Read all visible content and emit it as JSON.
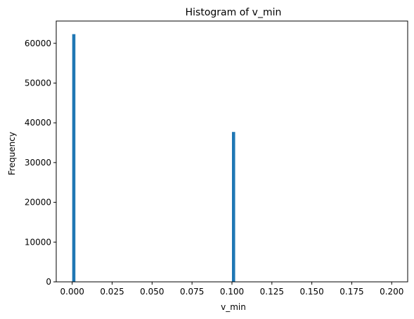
{
  "chart_data": {
    "type": "bar",
    "title": "Histogram of v_min",
    "xlabel": "v_min",
    "ylabel": "Frequency",
    "xlim": [
      -0.01,
      0.21
    ],
    "ylim": [
      0,
      65600
    ],
    "grid": false,
    "bin_width": 0.002,
    "x_ticks": [
      0.0,
      0.025,
      0.05,
      0.075,
      0.1,
      0.125,
      0.15,
      0.175,
      0.2
    ],
    "x_tick_labels": [
      "0.000",
      "0.025",
      "0.050",
      "0.075",
      "0.100",
      "0.125",
      "0.150",
      "0.175",
      "0.200"
    ],
    "y_ticks": [
      0,
      10000,
      20000,
      30000,
      40000,
      50000,
      60000
    ],
    "y_tick_labels": [
      "0",
      "10000",
      "20000",
      "30000",
      "40000",
      "50000",
      "60000"
    ],
    "bins": [
      {
        "x": 0.0,
        "value": 62300
      },
      {
        "x": 0.1,
        "value": 37700
      }
    ],
    "colors": {
      "bar": "#1f77b4",
      "axis": "#000000"
    }
  }
}
